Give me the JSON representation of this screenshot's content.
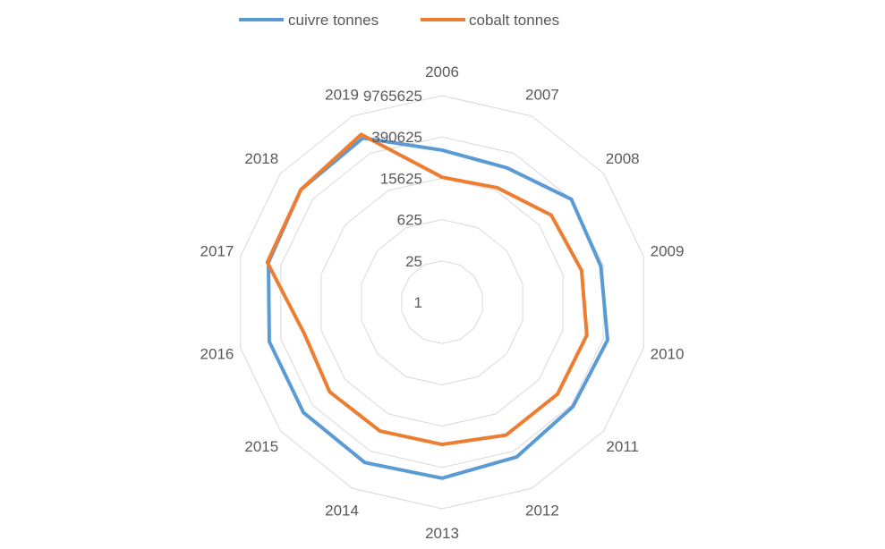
{
  "chart_data": {
    "type": "radar",
    "title": "",
    "categories": [
      "2006",
      "2007",
      "2008",
      "2009",
      "2010",
      "2011",
      "2012",
      "2013",
      "2014",
      "2015",
      "2016",
      "2017",
      "2018",
      "2019"
    ],
    "axis": {
      "scale": "log",
      "log_base": 25,
      "ticks": [
        "1",
        "25",
        "625",
        "15625",
        "390625",
        "9765625"
      ],
      "range": [
        1,
        9765625
      ],
      "grid": true
    },
    "legend_position": "top",
    "series": [
      {
        "name": "cuivre tonnes",
        "color": "#5b9bd5",
        "values": [
          140000,
          112000,
          390000,
          320000,
          550000,
          460000,
          650000,
          900000,
          1050000,
          980000,
          980000,
          1050000,
          1280000,
          1470000
        ]
      },
      {
        "name": "cobalt tonnes",
        "color": "#ed7d31",
        "values": [
          17000,
          20000,
          53000,
          69000,
          105000,
          98000,
          98000,
          65000,
          69000,
          73000,
          60000,
          1150000,
          1280000,
          2000000
        ]
      }
    ]
  }
}
